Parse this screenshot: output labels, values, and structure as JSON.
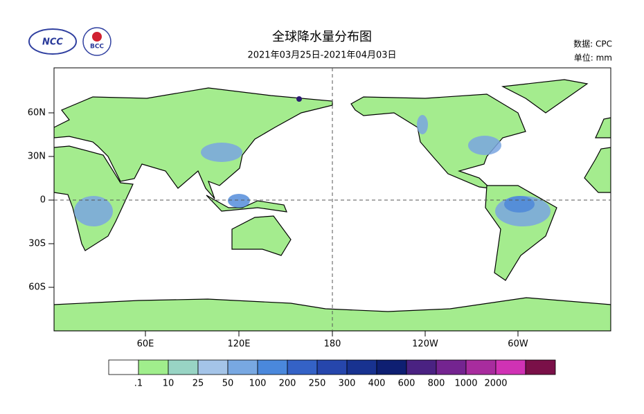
{
  "header": {
    "title": "全球降水量分布图",
    "subtitle": "2021年03月25日-2021年04月03日",
    "source": "数据: CPC",
    "unit": "单位: mm"
  },
  "logos": {
    "left": "NCC",
    "right": "BCC"
  },
  "map": {
    "lat_labels": [
      "60N",
      "30N",
      "0",
      "30S",
      "60S"
    ],
    "lon_labels": [
      "60E",
      "120E",
      "180",
      "120W",
      "60W"
    ]
  },
  "legend": {
    "labels": [
      ".1",
      "10",
      "25",
      "50",
      "100",
      "200",
      "250",
      "300",
      "400",
      "600",
      "800",
      "1000",
      "2000"
    ],
    "colors": [
      "#ffffff",
      "#a0ee8c",
      "#98d4c4",
      "#a4c4e8",
      "#78a8e2",
      "#4a88dc",
      "#3462c6",
      "#2646ac",
      "#183290",
      "#0e1f72",
      "#4a2282",
      "#742490",
      "#a82c9e",
      "#d032b4",
      "#7a1048"
    ]
  }
}
